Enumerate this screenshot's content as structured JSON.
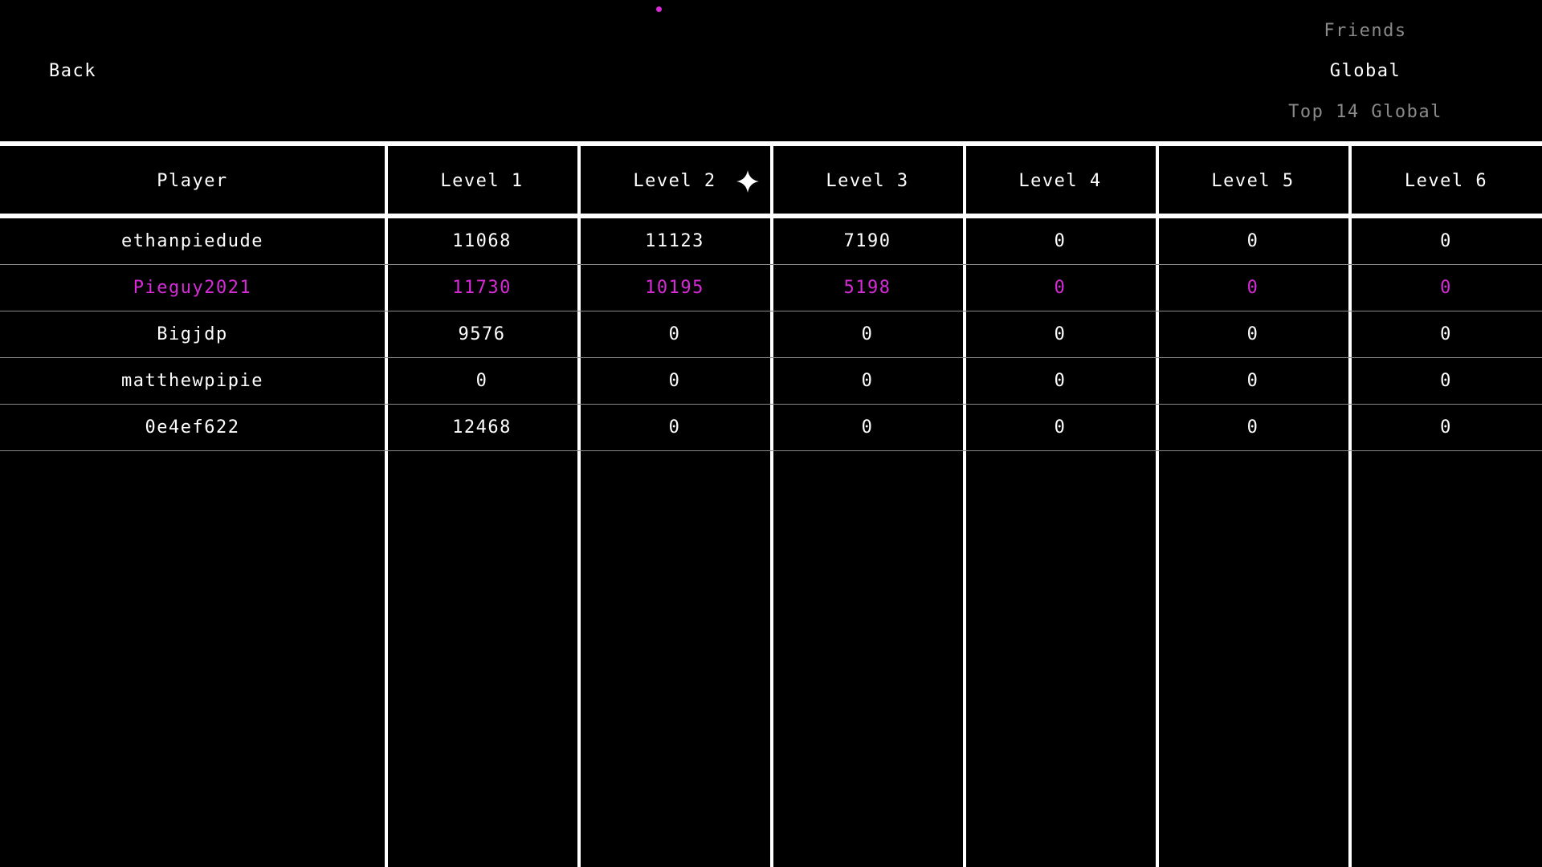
{
  "nav": {
    "back_label": "Back"
  },
  "tabs": [
    {
      "label": "Friends",
      "active": false
    },
    {
      "label": "Global",
      "active": true
    },
    {
      "label": "Top 14 Global",
      "active": false
    }
  ],
  "colors": {
    "highlight": "#d62bd6",
    "background": "#000000",
    "text": "#ffffff",
    "dim": "#8a8a8a"
  },
  "table": {
    "headers": [
      "Player",
      "Level 1",
      "Level 2",
      "Level 3",
      "Level 4",
      "Level 5",
      "Level 6"
    ],
    "sorted_column_icon": "sparkle-star-icon",
    "rows": [
      {
        "cells": [
          "ethanpiedude",
          "11068",
          "11123",
          "7190",
          "0",
          "0",
          "0"
        ],
        "highlight": false
      },
      {
        "cells": [
          "Pieguy2021",
          "11730",
          "10195",
          "5198",
          "0",
          "0",
          "0"
        ],
        "highlight": true
      },
      {
        "cells": [
          "Bigjdp",
          "9576",
          "0",
          "0",
          "0",
          "0",
          "0"
        ],
        "highlight": false
      },
      {
        "cells": [
          "matthewpipie",
          "0",
          "0",
          "0",
          "0",
          "0",
          "0"
        ],
        "highlight": false
      },
      {
        "cells": [
          "0e4ef622",
          "12468",
          "0",
          "0",
          "0",
          "0",
          "0"
        ],
        "highlight": false
      }
    ]
  }
}
